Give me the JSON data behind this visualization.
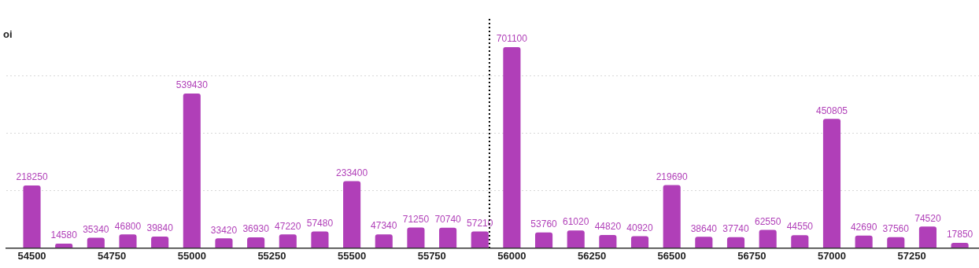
{
  "chart_data": {
    "type": "bar",
    "ylabel": "oi",
    "x": [
      54500,
      54600,
      54700,
      54800,
      54900,
      55000,
      55100,
      55200,
      55300,
      55400,
      55500,
      55600,
      55700,
      55800,
      55900,
      56000,
      56100,
      56200,
      56300,
      56400,
      56500,
      56600,
      56700,
      56800,
      56900,
      57000,
      57100,
      57200,
      57300,
      57400
    ],
    "values": [
      218250,
      14580,
      35340,
      46800,
      39840,
      539430,
      33420,
      36930,
      47220,
      57480,
      233400,
      47340,
      71250,
      70740,
      57210,
      701100,
      53760,
      61020,
      44820,
      40920,
      219690,
      38640,
      37740,
      62550,
      44550,
      450805,
      42690,
      37560,
      74520,
      17850
    ],
    "color": "#b03fb8",
    "xlim": [
      54420,
      57460
    ],
    "xticks": [
      54500,
      54750,
      55000,
      55250,
      55500,
      55750,
      56000,
      56250,
      56500,
      56750,
      57000,
      57250
    ],
    "ylim": [
      0,
      800000
    ],
    "yticks": [
      {
        "value": 0,
        "label": null
      },
      {
        "value": 200000,
        "label": null
      },
      {
        "value": 400000,
        "label": null
      },
      {
        "value": 600000,
        "label": null
      }
    ],
    "grid": "y",
    "tick_labels": "x",
    "data_labels": true,
    "ref_lines": [
      {
        "axis": "x",
        "value": 55930,
        "line_style": "dotted",
        "color": "#000000"
      }
    ]
  }
}
